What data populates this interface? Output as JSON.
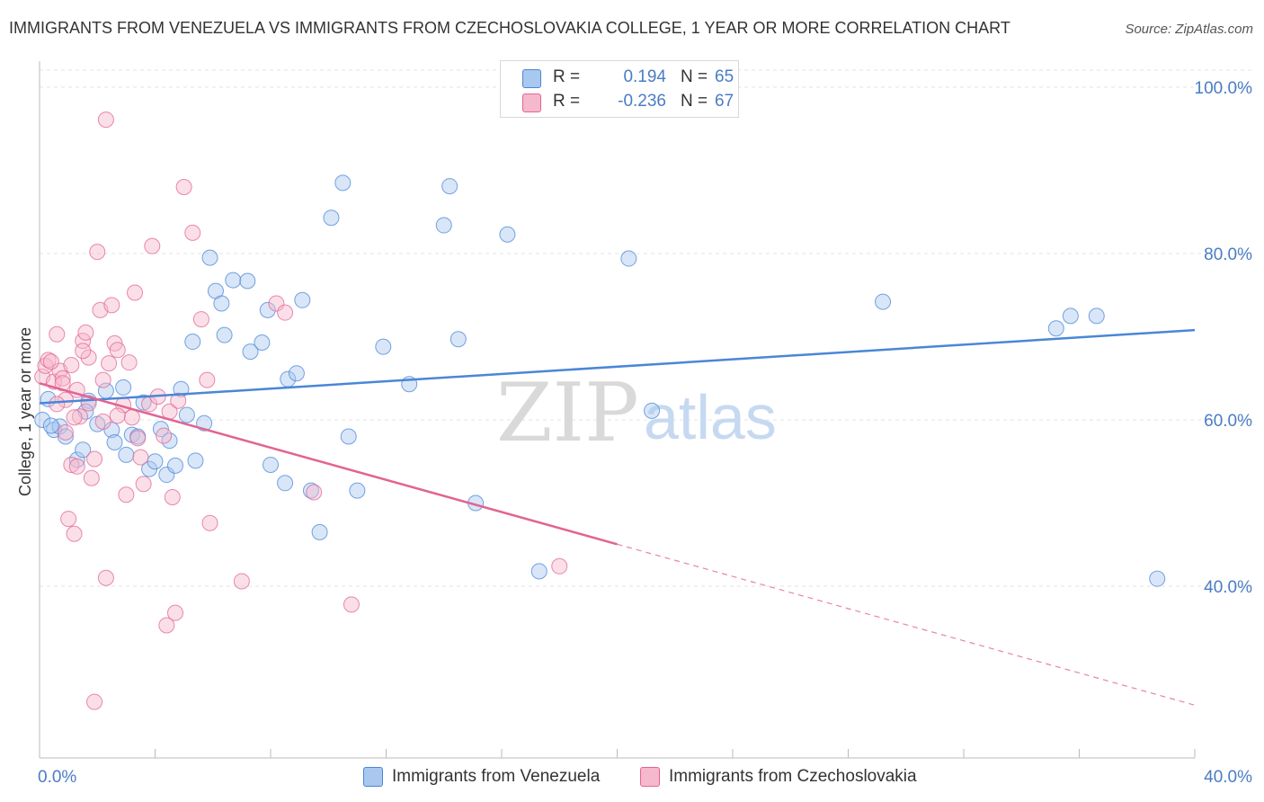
{
  "title": "IMMIGRANTS FROM VENEZUELA VS IMMIGRANTS FROM CZECHOSLOVAKIA COLLEGE, 1 YEAR OR MORE CORRELATION CHART",
  "source": "Source: ZipAtlas.com",
  "watermark": {
    "zip": "ZIP",
    "atlas": "atlas"
  },
  "legend": {
    "rows": [
      {
        "r_label": "R =",
        "r_value": "0.194",
        "n_label": "N =",
        "n_value": "65",
        "color": "#a9c8f0"
      },
      {
        "r_label": "R =",
        "r_value": "-0.236",
        "n_label": "N =",
        "n_value": "67",
        "color": "#f6b8cc"
      }
    ]
  },
  "bottom_legend": [
    {
      "label": "Immigrants from Venezuela",
      "color": "#a9c8f0"
    },
    {
      "label": "Immigrants from Czechoslovakia",
      "color": "#f6b8cc"
    }
  ],
  "chart_data": {
    "type": "scatter",
    "title": "IMMIGRANTS FROM VENEZUELA VS IMMIGRANTS FROM CZECHOSLOVAKIA COLLEGE, 1 YEAR OR MORE CORRELATION CHART",
    "xlabel": "",
    "ylabel": "College, 1 year or more",
    "xlim": [
      0,
      40
    ],
    "ylim": [
      20,
      100
    ],
    "x_tick_labels": [
      {
        "value": 0,
        "label": "0.0%"
      },
      {
        "value": 40,
        "label": "40.0%"
      }
    ],
    "y_tick_labels": [
      {
        "value": 40,
        "label": "40.0%"
      },
      {
        "value": 60,
        "label": "60.0%"
      },
      {
        "value": 80,
        "label": "80.0%"
      },
      {
        "value": 100,
        "label": "100.0%"
      }
    ],
    "series": [
      {
        "name": "Immigrants from Venezuela",
        "color": "#4a86d8",
        "fill": "#a9c8f0",
        "trend": {
          "x": [
            0,
            40
          ],
          "y": [
            62.0,
            70.8
          ],
          "dashed_from": null
        },
        "points": [
          [
            0.1,
            60.0
          ],
          [
            0.3,
            62.5
          ],
          [
            0.5,
            58.8
          ],
          [
            0.7,
            59.2
          ],
          [
            0.9,
            58.0
          ],
          [
            1.3,
            55.2
          ],
          [
            1.5,
            56.4
          ],
          [
            1.7,
            62.3
          ],
          [
            1.6,
            61.0
          ],
          [
            2.0,
            59.5
          ],
          [
            2.3,
            63.5
          ],
          [
            2.5,
            58.8
          ],
          [
            2.6,
            57.3
          ],
          [
            2.9,
            63.9
          ],
          [
            3.0,
            55.8
          ],
          [
            3.2,
            58.2
          ],
          [
            3.4,
            58.0
          ],
          [
            3.6,
            62.1
          ],
          [
            3.8,
            54.1
          ],
          [
            4.0,
            55.0
          ],
          [
            4.2,
            58.9
          ],
          [
            4.4,
            53.4
          ],
          [
            4.5,
            57.5
          ],
          [
            4.7,
            54.5
          ],
          [
            4.9,
            63.7
          ],
          [
            5.1,
            60.6
          ],
          [
            5.3,
            69.4
          ],
          [
            5.4,
            55.1
          ],
          [
            5.7,
            59.6
          ],
          [
            5.9,
            79.5
          ],
          [
            6.1,
            75.5
          ],
          [
            6.3,
            74.0
          ],
          [
            6.4,
            70.2
          ],
          [
            6.7,
            76.8
          ],
          [
            7.2,
            76.7
          ],
          [
            7.3,
            68.2
          ],
          [
            7.7,
            69.3
          ],
          [
            7.9,
            73.2
          ],
          [
            8.0,
            54.6
          ],
          [
            8.5,
            52.4
          ],
          [
            8.6,
            64.9
          ],
          [
            8.9,
            65.6
          ],
          [
            9.1,
            74.4
          ],
          [
            9.4,
            51.5
          ],
          [
            9.7,
            46.5
          ],
          [
            10.1,
            84.3
          ],
          [
            10.5,
            88.5
          ],
          [
            10.7,
            58.0
          ],
          [
            11.0,
            51.5
          ],
          [
            11.9,
            68.8
          ],
          [
            12.8,
            64.3
          ],
          [
            14.0,
            83.4
          ],
          [
            14.5,
            69.7
          ],
          [
            14.2,
            88.1
          ],
          [
            15.1,
            50.0
          ],
          [
            16.2,
            82.3
          ],
          [
            17.3,
            41.8
          ],
          [
            20.4,
            79.4
          ],
          [
            21.2,
            61.1
          ],
          [
            29.2,
            74.2
          ],
          [
            35.2,
            71.0
          ],
          [
            35.7,
            72.5
          ],
          [
            36.6,
            72.5
          ],
          [
            38.7,
            40.9
          ],
          [
            0.4,
            59.3
          ]
        ]
      },
      {
        "name": "Immigrants from Czechoslovakia",
        "color": "#e26492",
        "fill": "#f6b8cc",
        "trend": {
          "x": [
            0,
            40
          ],
          "y": [
            64.4,
            25.7
          ],
          "dashed_from": 20
        },
        "points": [
          [
            0.1,
            65.2
          ],
          [
            0.2,
            66.5
          ],
          [
            0.3,
            67.2
          ],
          [
            0.5,
            64.6
          ],
          [
            0.6,
            70.3
          ],
          [
            0.7,
            65.9
          ],
          [
            0.8,
            65.0
          ],
          [
            0.9,
            62.4
          ],
          [
            1.0,
            48.1
          ],
          [
            1.1,
            54.6
          ],
          [
            1.2,
            46.3
          ],
          [
            1.3,
            54.4
          ],
          [
            1.4,
            60.4
          ],
          [
            1.5,
            69.5
          ],
          [
            1.6,
            70.5
          ],
          [
            1.7,
            67.5
          ],
          [
            1.8,
            53.0
          ],
          [
            1.9,
            55.3
          ],
          [
            2.0,
            80.2
          ],
          [
            2.1,
            73.2
          ],
          [
            2.2,
            59.8
          ],
          [
            2.3,
            41.0
          ],
          [
            2.5,
            73.8
          ],
          [
            2.6,
            69.2
          ],
          [
            2.7,
            68.4
          ],
          [
            2.9,
            61.8
          ],
          [
            3.0,
            51.0
          ],
          [
            3.1,
            66.9
          ],
          [
            3.2,
            60.3
          ],
          [
            3.3,
            75.3
          ],
          [
            3.5,
            55.5
          ],
          [
            3.6,
            52.3
          ],
          [
            3.8,
            61.9
          ],
          [
            3.9,
            80.9
          ],
          [
            4.1,
            62.8
          ],
          [
            4.3,
            58.1
          ],
          [
            4.4,
            35.3
          ],
          [
            4.5,
            61.0
          ],
          [
            4.6,
            50.7
          ],
          [
            4.7,
            36.8
          ],
          [
            4.8,
            62.3
          ],
          [
            5.0,
            88.0
          ],
          [
            5.3,
            82.5
          ],
          [
            5.6,
            72.1
          ],
          [
            5.8,
            64.8
          ],
          [
            5.9,
            47.6
          ],
          [
            7.0,
            40.6
          ],
          [
            8.2,
            74.0
          ],
          [
            8.5,
            72.9
          ],
          [
            9.5,
            51.3
          ],
          [
            10.8,
            37.8
          ],
          [
            18.0,
            42.4
          ],
          [
            2.3,
            96.1
          ],
          [
            1.9,
            26.1
          ],
          [
            0.4,
            67.0
          ],
          [
            0.8,
            64.4
          ],
          [
            1.2,
            60.3
          ],
          [
            1.7,
            62.0
          ],
          [
            2.2,
            64.8
          ],
          [
            2.7,
            60.5
          ],
          [
            3.4,
            57.8
          ],
          [
            1.1,
            66.6
          ],
          [
            0.6,
            61.9
          ],
          [
            1.5,
            68.3
          ],
          [
            2.4,
            66.8
          ],
          [
            0.9,
            58.5
          ],
          [
            1.3,
            63.6
          ]
        ]
      }
    ],
    "grid": true,
    "legend_position": "top-center"
  }
}
